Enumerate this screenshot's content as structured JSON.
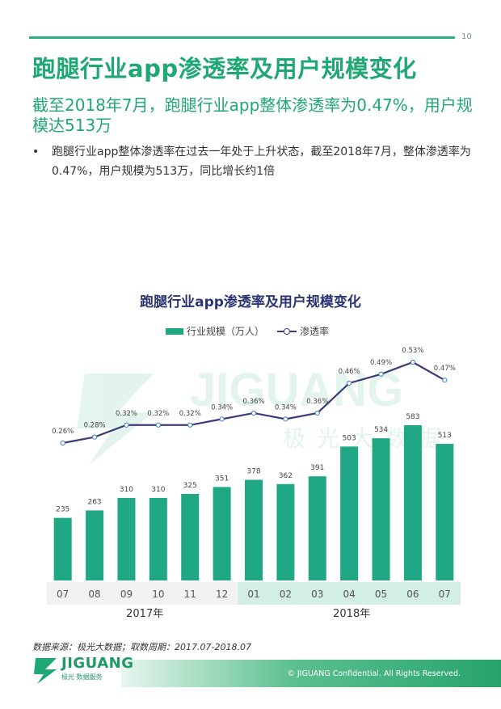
{
  "page": {
    "number": "10",
    "title": "跑腿行业app渗透率及用户规模变化",
    "subtitle": "截至2018年7月，跑腿行业app整体渗透率为0.47%，用户规模达513万",
    "bullet": "跑腿行业app整体渗透率在过去一年处于上升状态，截至2018年7月，整体渗透率为0.47%，用户规模为513万，同比增长约1倍",
    "bullet_marker": "•"
  },
  "chart_data": {
    "type": "bar",
    "title": "跑腿行业app渗透率及用户规模变化",
    "categories": [
      "07",
      "08",
      "09",
      "10",
      "11",
      "12",
      "01",
      "02",
      "03",
      "04",
      "05",
      "06",
      "07"
    ],
    "year_groups": [
      {
        "label": "2017年",
        "from": 0,
        "to": 5
      },
      {
        "label": "2018年",
        "from": 6,
        "to": 12
      }
    ],
    "series": [
      {
        "name": "行业规模（万人）",
        "type": "bar",
        "color": "#1fa883",
        "values": [
          235,
          263,
          310,
          310,
          325,
          351,
          378,
          362,
          391,
          503,
          534,
          583,
          513
        ],
        "labels": [
          "235",
          "263",
          "310",
          "310",
          "325",
          "351",
          "378",
          "362",
          "391",
          "503",
          "534",
          "583",
          "513"
        ]
      },
      {
        "name": "渗透率",
        "type": "line",
        "color": "#3c3a78",
        "values": [
          0.26,
          0.28,
          0.32,
          0.32,
          0.32,
          0.34,
          0.36,
          0.34,
          0.36,
          0.46,
          0.49,
          0.53,
          0.47
        ],
        "labels": [
          "0.26%",
          "0.28%",
          "0.32%",
          "0.32%",
          "0.32%",
          "0.34%",
          "0.36%",
          "0.34%",
          "0.36%",
          "0.46%",
          "0.49%",
          "0.53%",
          "0.47%"
        ]
      }
    ],
    "legend_position": "top-center",
    "grid": false,
    "watermark": {
      "text": "JIGUANG",
      "subtext": "极光大数据"
    }
  },
  "footer": {
    "source": "数据来源：极光大数据；取数周期：2017.07-2018.07",
    "logo_text": "JIGUANG",
    "logo_sub": "极光 数据服务",
    "copyright": "© JIGUANG Confidential. All Rights Reserved."
  },
  "colors": {
    "accent": "#1fa774",
    "bar": "#1fa883",
    "line": "#3c3a78",
    "title_dark": "#2b3473"
  }
}
